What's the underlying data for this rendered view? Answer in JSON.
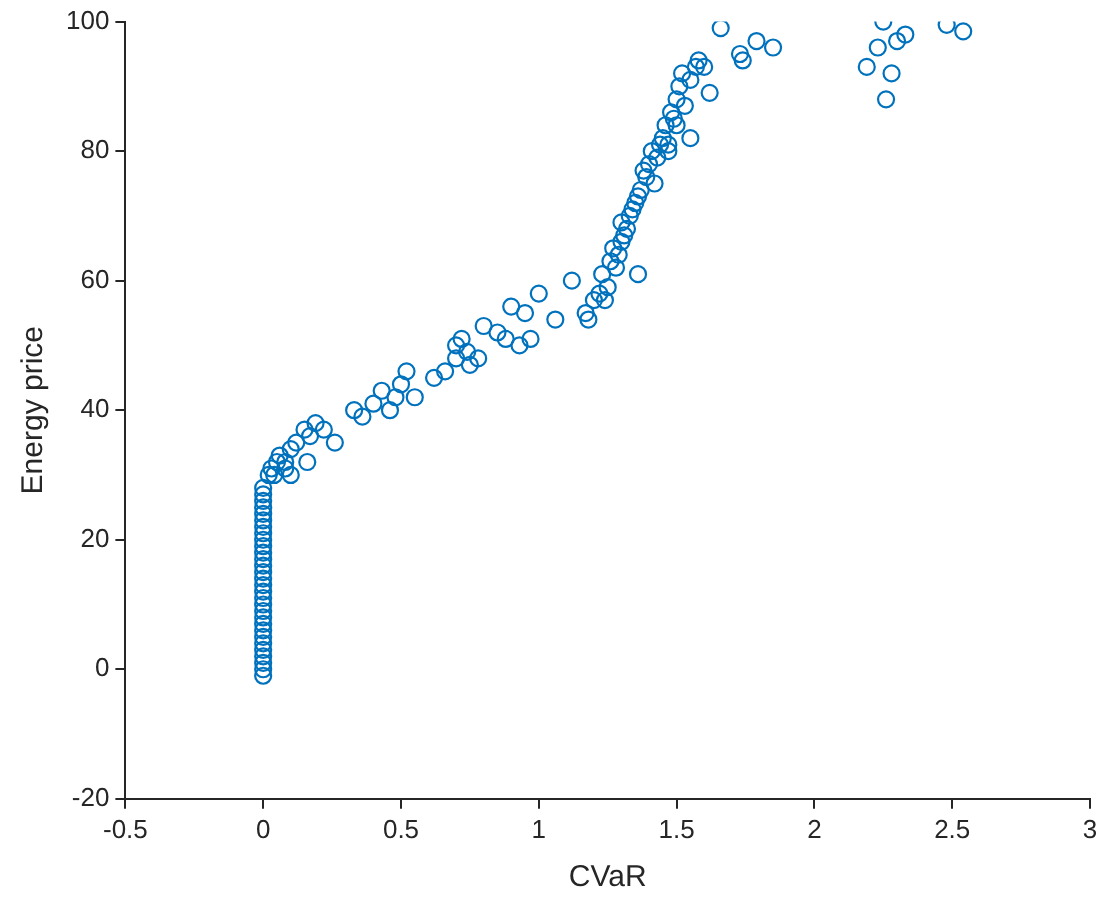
{
  "chart_data": {
    "type": "scatter",
    "xlabel": "CVaR",
    "ylabel": "Energy price",
    "xlim": [
      -0.5,
      3
    ],
    "xticks": [
      -0.5,
      0,
      0.5,
      1,
      1.5,
      2,
      2.5,
      3
    ],
    "ylim": [
      -20,
      100
    ],
    "yticks": [
      -20,
      0,
      20,
      40,
      60,
      80,
      100
    ],
    "grid": false,
    "legend": false,
    "marker": "circle",
    "series": [
      {
        "color": "#0072bd",
        "x": [
          0,
          0,
          0,
          0,
          0,
          0,
          0,
          0,
          0,
          0,
          0,
          0,
          0,
          0,
          0,
          0,
          0,
          0,
          0,
          0,
          0,
          0,
          0,
          0,
          0,
          0,
          0,
          0,
          0,
          0,
          0.02,
          0.03,
          0.05,
          0.06,
          0.08,
          0.04,
          0.1,
          0.12,
          0.15,
          0.17,
          0.19,
          0.22,
          0.26,
          0.1,
          0.08,
          0.16,
          0.33,
          0.36,
          0.4,
          0.43,
          0.46,
          0.48,
          0.5,
          0.52,
          0.55,
          0.62,
          0.66,
          0.7,
          0.7,
          0.72,
          0.75,
          0.74,
          0.78,
          0.8,
          0.85,
          0.88,
          0.9,
          0.93,
          0.95,
          0.97,
          1.0,
          1.06,
          1.12,
          1.17,
          1.18,
          1.2,
          1.22,
          1.25,
          1.23,
          1.26,
          1.27,
          1.28,
          1.3,
          1.32,
          1.33,
          1.35,
          1.36,
          1.37,
          1.36,
          1.39,
          1.4,
          1.42,
          1.41,
          1.43,
          1.45,
          1.46,
          1.47,
          1.48,
          1.49,
          1.5,
          1.51,
          1.52,
          1.53,
          1.55,
          1.55,
          1.57,
          1.58,
          1.6,
          1.62,
          1.66,
          1.73,
          1.74,
          1.79,
          1.85,
          2.19,
          2.23,
          2.25,
          2.26,
          2.28,
          2.3,
          2.33,
          2.48,
          2.54,
          1.24,
          1.29,
          1.31,
          1.34,
          1.38,
          1.3,
          1.44,
          1.5,
          1.47
        ],
        "values": [
          -1,
          0,
          1,
          2,
          3,
          4,
          5,
          6,
          7,
          8,
          9,
          10,
          11,
          12,
          13,
          14,
          15,
          16,
          17,
          18,
          19,
          20,
          21,
          22,
          23,
          24,
          25,
          26,
          27,
          28,
          30,
          31,
          32,
          33,
          31,
          30,
          34,
          35,
          37,
          36,
          38,
          37,
          35,
          30,
          32,
          32,
          40,
          39,
          41,
          43,
          40,
          42,
          44,
          46,
          42,
          45,
          46,
          48,
          50,
          51,
          47,
          49,
          48,
          53,
          52,
          51,
          56,
          50,
          55,
          51,
          58,
          54,
          60,
          55,
          54,
          57,
          58,
          59,
          61,
          63,
          65,
          62,
          66,
          68,
          70,
          72,
          61,
          74,
          73,
          76,
          78,
          75,
          80,
          79,
          82,
          84,
          80,
          86,
          85,
          88,
          90,
          92,
          87,
          82,
          91,
          93,
          94,
          93,
          89,
          99,
          95,
          94,
          97,
          96,
          93,
          96,
          100,
          88,
          92,
          97,
          98,
          99.5,
          98.5,
          57,
          64,
          67,
          71,
          77,
          69,
          81,
          84,
          81
        ]
      }
    ]
  }
}
